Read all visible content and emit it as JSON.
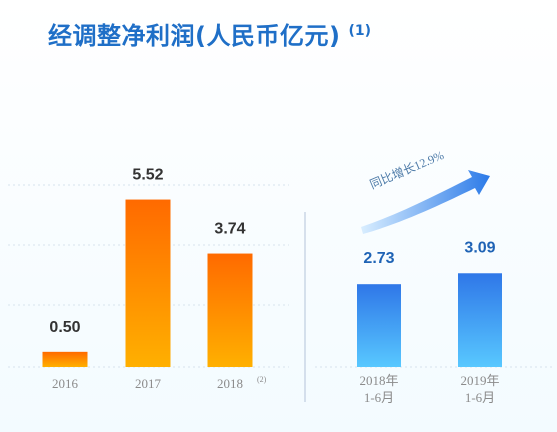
{
  "title": "经调整净利润(人民币亿元)",
  "title_note": "(1)",
  "growth_label": "同比增长12.9%",
  "chart_data": [
    {
      "type": "bar",
      "title": "",
      "categories": [
        "2016",
        "2017",
        "2018"
      ],
      "values": [
        0.5,
        5.52,
        3.74
      ],
      "value_labels": [
        "0.50",
        "5.52",
        "3.74"
      ],
      "category_notes": [
        "",
        "",
        "(2)"
      ],
      "ylim": [
        0,
        6
      ],
      "grid": true,
      "bar_color": "#ff7a00",
      "label_color": "#333333"
    },
    {
      "type": "bar",
      "title": "",
      "categories": [
        [
          "2018年",
          "1-6月"
        ],
        [
          "2019年",
          "1-6月"
        ]
      ],
      "values": [
        2.73,
        3.09
      ],
      "value_labels": [
        "2.73",
        "3.09"
      ],
      "ylim": [
        0,
        6
      ],
      "bar_color": "#2f77e8",
      "label_color": "#1f63b5"
    }
  ]
}
